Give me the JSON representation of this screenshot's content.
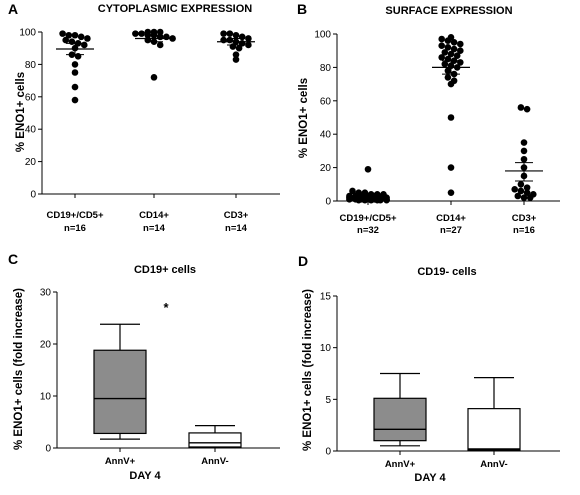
{
  "chart_data": [
    {
      "type": "scatter",
      "panel": "A",
      "title": "CYTOPLASMIC EXPRESSION",
      "ylabel": "% ENO1+ cells",
      "ylim": [
        0,
        100
      ],
      "yticks": [
        0,
        20,
        40,
        60,
        80,
        100
      ],
      "categories": [
        "CD19+/CD5+",
        "CD14+",
        "CD3+"
      ],
      "counts": [
        "n=16",
        "n=14",
        "n=14"
      ],
      "series": [
        {
          "values": [
            99,
            98,
            98,
            97,
            96,
            95,
            94,
            93,
            92,
            90,
            86,
            85,
            80,
            75,
            66,
            58
          ],
          "mean": 89.5,
          "sem_low": 86,
          "sem_high": 93
        },
        {
          "values": [
            100,
            100,
            100,
            99,
            99,
            98,
            98,
            97,
            97,
            96,
            95,
            94,
            92,
            72
          ],
          "mean": 96,
          "sem_low": 94,
          "sem_high": 98
        },
        {
          "values": [
            99,
            99,
            98,
            97,
            96,
            95,
            95,
            94,
            93,
            92,
            91,
            90,
            86,
            83
          ],
          "mean": 94,
          "sem_low": 92,
          "sem_high": 96
        }
      ]
    },
    {
      "type": "scatter",
      "panel": "B",
      "title": "SURFACE EXPRESSION",
      "ylabel": "% ENO1+ cells",
      "ylim": [
        0,
        100
      ],
      "yticks": [
        0,
        20,
        40,
        60,
        80,
        100
      ],
      "categories": [
        "CD19+/CD5+",
        "CD14+",
        "CD3+"
      ],
      "counts": [
        "n=32",
        "n=27",
        "n=16"
      ],
      "series": [
        {
          "values": [
            19,
            6,
            5,
            5,
            4,
            4,
            4,
            3,
            3,
            3,
            3,
            3,
            2,
            2,
            2,
            2,
            2,
            2,
            1,
            1,
            1,
            1,
            1,
            1,
            1,
            1,
            0.5,
            0.5,
            0.5,
            0.5,
            0.5,
            0.5
          ],
          "mean": 2.5,
          "sem_low": 1.5,
          "sem_high": 3.5
        },
        {
          "values": [
            98,
            97,
            96,
            95,
            94,
            93,
            92,
            91,
            90,
            89,
            88,
            87,
            86,
            85,
            84,
            83,
            82,
            81,
            80,
            78,
            76,
            74,
            72,
            70,
            50,
            20,
            5
          ],
          "mean": 80,
          "sem_low": 76,
          "sem_high": 84
        },
        {
          "values": [
            56,
            55,
            35,
            30,
            25,
            20,
            15,
            10,
            8,
            7,
            6,
            5,
            4,
            3,
            2,
            2
          ],
          "mean": 18,
          "sem_low": 12,
          "sem_high": 23
        }
      ]
    },
    {
      "type": "box",
      "panel": "C",
      "title": "CD19+ cells",
      "ylabel": "% ENO1+ cells (fold increase)",
      "xlabel": "DAY 4",
      "ylim": [
        0,
        30
      ],
      "yticks": [
        0,
        10,
        20,
        30
      ],
      "categories": [
        "AnnV+",
        "AnnV-"
      ],
      "annotation": "*",
      "boxes": [
        {
          "min": 1.7,
          "q1": 2.8,
          "median": 9.5,
          "q3": 18.8,
          "max": 23.8,
          "fill": "#8c8c8c"
        },
        {
          "min": 0.1,
          "q1": 0.2,
          "median": 1.0,
          "q3": 2.9,
          "max": 4.3,
          "fill": "#ffffff"
        }
      ]
    },
    {
      "type": "box",
      "panel": "D",
      "title": "CD19- cells",
      "ylabel": "% ENO1+ cells (fold increase)",
      "xlabel": "DAY 4",
      "ylim": [
        0,
        15
      ],
      "yticks": [
        0,
        5,
        10,
        15
      ],
      "categories": [
        "AnnV+",
        "AnnV-"
      ],
      "boxes": [
        {
          "min": 0.5,
          "q1": 1.0,
          "median": 2.1,
          "q3": 5.1,
          "max": 7.5,
          "fill": "#8c8c8c"
        },
        {
          "min": 0.1,
          "q1": 0.1,
          "median": 0.2,
          "q3": 4.1,
          "max": 7.1,
          "fill": "#ffffff"
        }
      ]
    }
  ]
}
